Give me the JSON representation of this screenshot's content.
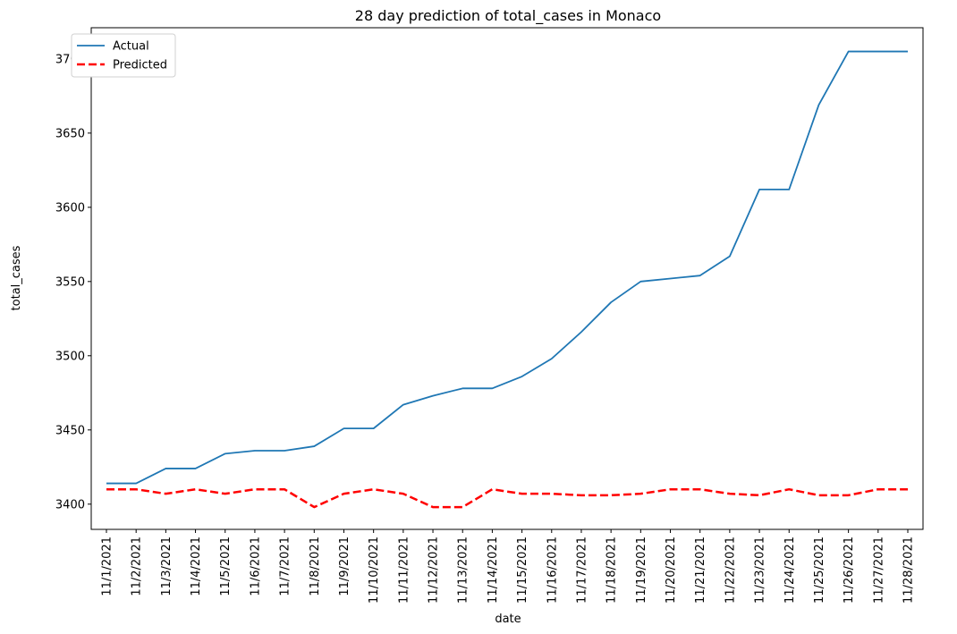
{
  "chart_data": {
    "type": "line",
    "title": "28 day prediction of total_cases in Monaco",
    "xlabel": "date",
    "ylabel": "total_cases",
    "categories": [
      "11/1/2021",
      "11/2/2021",
      "11/3/2021",
      "11/4/2021",
      "11/5/2021",
      "11/6/2021",
      "11/7/2021",
      "11/8/2021",
      "11/9/2021",
      "11/10/2021",
      "11/11/2021",
      "11/12/2021",
      "11/13/2021",
      "11/14/2021",
      "11/15/2021",
      "11/16/2021",
      "11/17/2021",
      "11/18/2021",
      "11/19/2021",
      "11/20/2021",
      "11/21/2021",
      "11/22/2021",
      "11/23/2021",
      "11/24/2021",
      "11/25/2021",
      "11/26/2021",
      "11/27/2021",
      "11/28/2021"
    ],
    "ylim": [
      3383,
      3721
    ],
    "yticks": [
      3400,
      3450,
      3500,
      3550,
      3600,
      3650,
      3700
    ],
    "grid": false,
    "legend_position": "top-left",
    "series": [
      {
        "name": "Actual",
        "color": "#1f77b4",
        "style": "solid",
        "values": [
          3414,
          3414,
          3424,
          3424,
          3434,
          3436,
          3436,
          3439,
          3451,
          3451,
          3467,
          3473,
          3478,
          3478,
          3486,
          3498,
          3516,
          3536,
          3550,
          3552,
          3554,
          3567,
          3612,
          3612,
          3669,
          3705,
          3705,
          3705
        ]
      },
      {
        "name": "Predicted",
        "color": "#ff0000",
        "style": "dashed",
        "values": [
          3410,
          3410,
          3407,
          3410,
          3407,
          3410,
          3410,
          3398,
          3407,
          3410,
          3407,
          3398,
          3398,
          3410,
          3407,
          3407,
          3406,
          3406,
          3407,
          3410,
          3410,
          3407,
          3406,
          3410,
          3406,
          3406,
          3410,
          3410
        ]
      }
    ]
  }
}
